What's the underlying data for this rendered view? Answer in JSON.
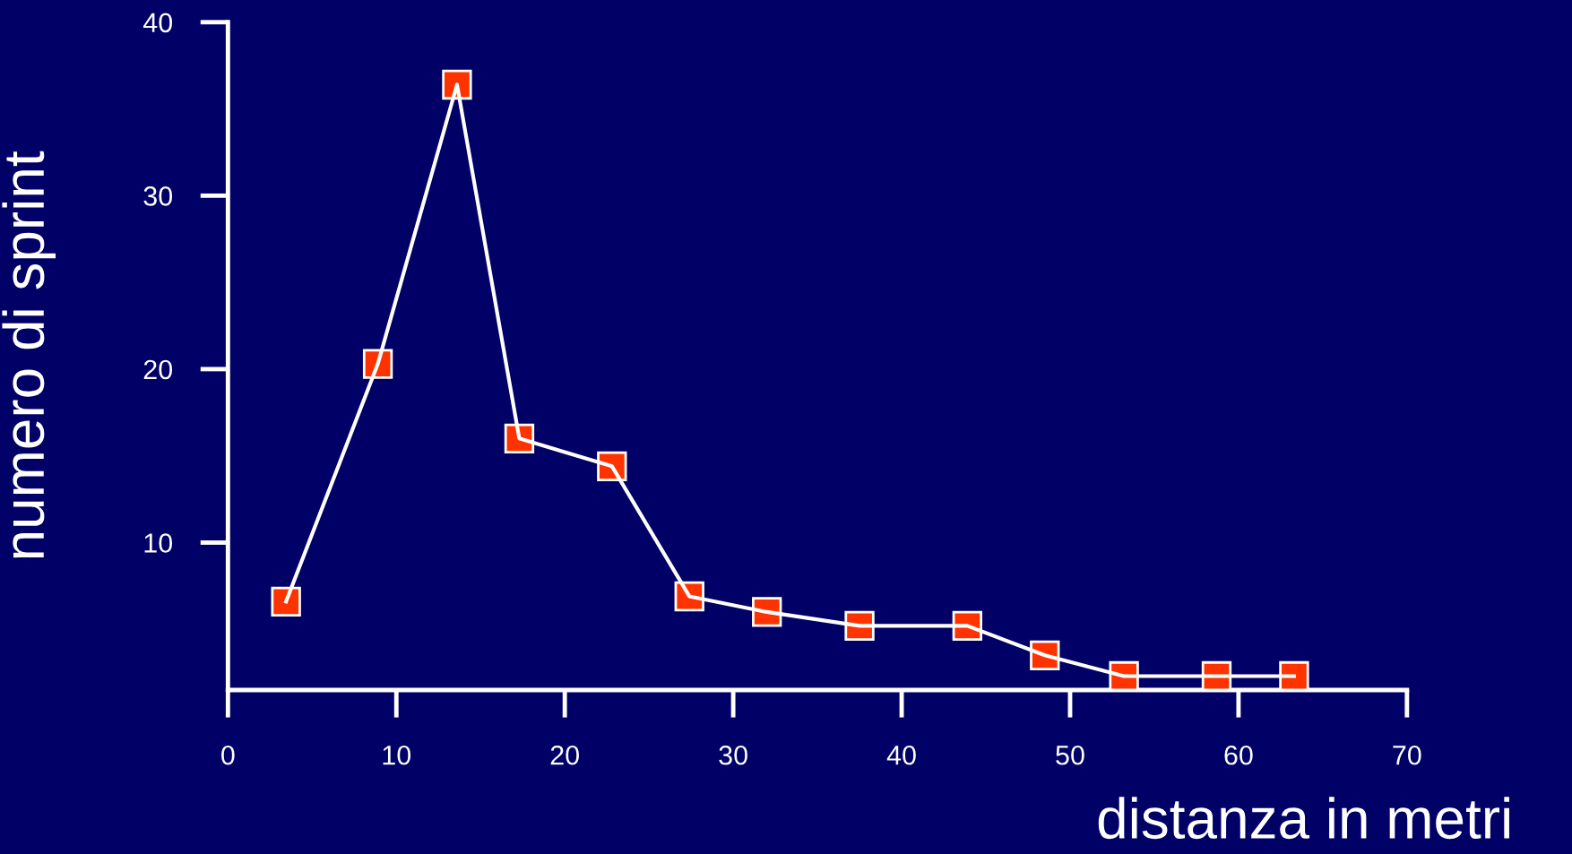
{
  "chart_data": {
    "type": "line",
    "xlabel": "distanza in metri",
    "ylabel": "numero di sprint",
    "x": [
      3.45,
      8.9,
      13.6,
      17.3,
      22.8,
      27.4,
      32.0,
      37.5,
      43.9,
      48.5,
      53.2,
      58.7,
      63.3
    ],
    "series": [
      {
        "color": "#ff3300",
        "values": [
          6.6,
          20.3,
          36.4,
          16.0,
          14.4,
          6.9,
          6.0,
          5.2,
          5.2,
          3.5,
          2.3,
          2.3,
          2.3
        ]
      }
    ],
    "xlim": [
      0,
      70
    ],
    "xticks": [
      0,
      10,
      20,
      30,
      40,
      50,
      60,
      70
    ],
    "ylim": [
      1.5,
      40
    ],
    "yticks": [
      10,
      20,
      30,
      40
    ],
    "marker": "square",
    "line_style": "solid",
    "grid": false,
    "legend": false
  }
}
